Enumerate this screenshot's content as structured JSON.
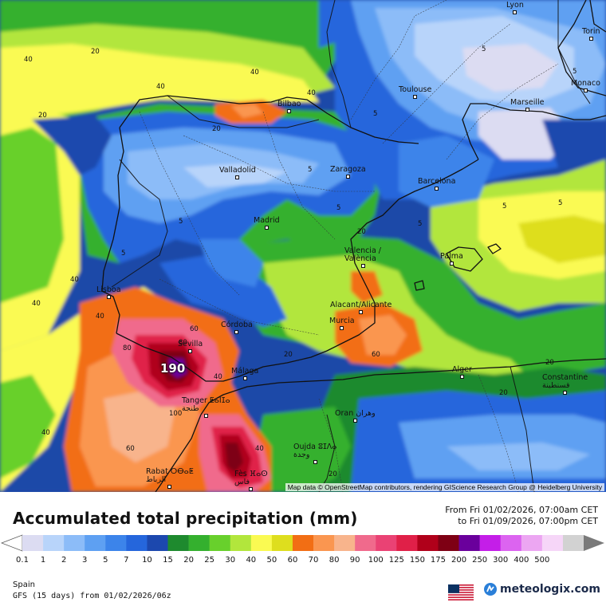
{
  "map": {
    "attribution": "Map data © OpenStreetMap contributors, rendering GIScience Research Group @ Heidelberg University",
    "peak_label": "190",
    "cities": [
      {
        "id": "lyon",
        "name": "Lyon"
      },
      {
        "id": "torino",
        "name": "Torin"
      },
      {
        "id": "monaco",
        "name": "Monaco"
      },
      {
        "id": "toulouse",
        "name": "Toulouse"
      },
      {
        "id": "marseille",
        "name": "Marseille"
      },
      {
        "id": "bilbao",
        "name": "Bilbao"
      },
      {
        "id": "valladolid",
        "name": "Valladolid"
      },
      {
        "id": "zaragoza",
        "name": "Zaragoza"
      },
      {
        "id": "barcelona",
        "name": "Barcelona"
      },
      {
        "id": "madrid",
        "name": "Madrid"
      },
      {
        "id": "valencia",
        "name": "Valencia /\nValència"
      },
      {
        "id": "palma",
        "name": "Palma"
      },
      {
        "id": "lisboa",
        "name": "Lisboa"
      },
      {
        "id": "alicante",
        "name": "Alacant/Alicante"
      },
      {
        "id": "murcia",
        "name": "Murcia"
      },
      {
        "id": "cordoba",
        "name": "Córdoba"
      },
      {
        "id": "sevilla",
        "name": "Sevilla"
      },
      {
        "id": "malaga",
        "name": "Málaga"
      },
      {
        "id": "alger",
        "name": "Alger"
      },
      {
        "id": "constantine",
        "name": "Constantine\nقسنطينة"
      },
      {
        "id": "tanger",
        "name": "Tanger ⵟⴰⵏⵊⴰ\nطنجة"
      },
      {
        "id": "oran",
        "name": "Oran وهران"
      },
      {
        "id": "oujda",
        "name": "Oujda ⵓⵊⴷⴰ\nوجدة"
      },
      {
        "id": "rabat",
        "name": "Rabat ⵔⴱⴰⵟ\nالرباط"
      },
      {
        "id": "fes",
        "name": "Fès ⴼⴰⵙ\nفاس"
      }
    ],
    "contours": [
      "20",
      "40",
      "20",
      "40",
      "40",
      "20",
      "5",
      "5",
      "5",
      "5",
      "5",
      "5",
      "5",
      "5",
      "5",
      "20",
      "40",
      "5",
      "80",
      "60",
      "40",
      "80",
      "100",
      "60",
      "40",
      "40",
      "60",
      "20",
      "20",
      "20",
      "20",
      "40",
      "40",
      "40"
    ]
  },
  "legend": {
    "title": "Accumulated total precipitation (mm)",
    "from": "From Fri 01/02/2026, 07:00am CET",
    "to": "to Fri 01/09/2026, 07:00pm CET",
    "ticks": [
      "0.1",
      "1",
      "2",
      "3",
      "5",
      "7",
      "10",
      "15",
      "20",
      "25",
      "30",
      "40",
      "50",
      "60",
      "70",
      "80",
      "90",
      "100",
      "125",
      "150",
      "175",
      "200",
      "250",
      "300",
      "400",
      "500"
    ],
    "colors": [
      "#dcdcf2",
      "#b8d4fa",
      "#8cbcf8",
      "#5ea0f2",
      "#3c84ea",
      "#2566dc",
      "#1c48ae",
      "#1e8a2e",
      "#34b02e",
      "#68d02c",
      "#b2e63c",
      "#fafa52",
      "#dede1e",
      "#f26e14",
      "#fa9650",
      "#f8b48c",
      "#f06a8c",
      "#ea4274",
      "#e02048",
      "#b0001a",
      "#7e0014",
      "#6a009c",
      "#c41ee8",
      "#dc64f0",
      "#eca6f2",
      "#f6d6f8",
      "#d2d2d2"
    ],
    "region": "Spain",
    "model": "GFS (15 days) from  01/02/2026/06z",
    "brand": "meteologix.com",
    "flag_icon": "us-flag-icon",
    "logo_icon": "meteologix-logo-icon"
  }
}
